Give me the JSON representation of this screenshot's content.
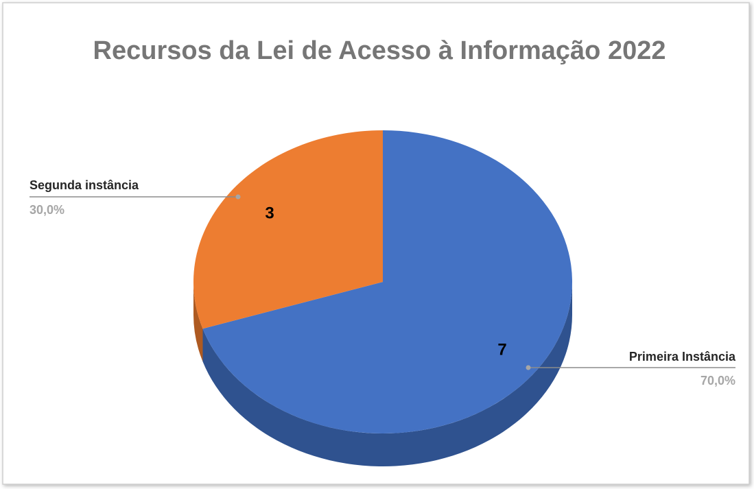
{
  "chart_data": {
    "type": "pie3d",
    "title": "Recursos da Lei de Acesso à Informação 2022",
    "categories": [
      "Primeira Instância",
      "Segunda instância"
    ],
    "values": [
      7,
      3
    ],
    "percents": [
      70.0,
      30.0
    ],
    "percent_labels": [
      "70,0%",
      "30,0%"
    ],
    "colors": [
      "#4472c4",
      "#ed7d31"
    ],
    "side_colors": [
      "#2f528f",
      "#ae5a21"
    ]
  }
}
